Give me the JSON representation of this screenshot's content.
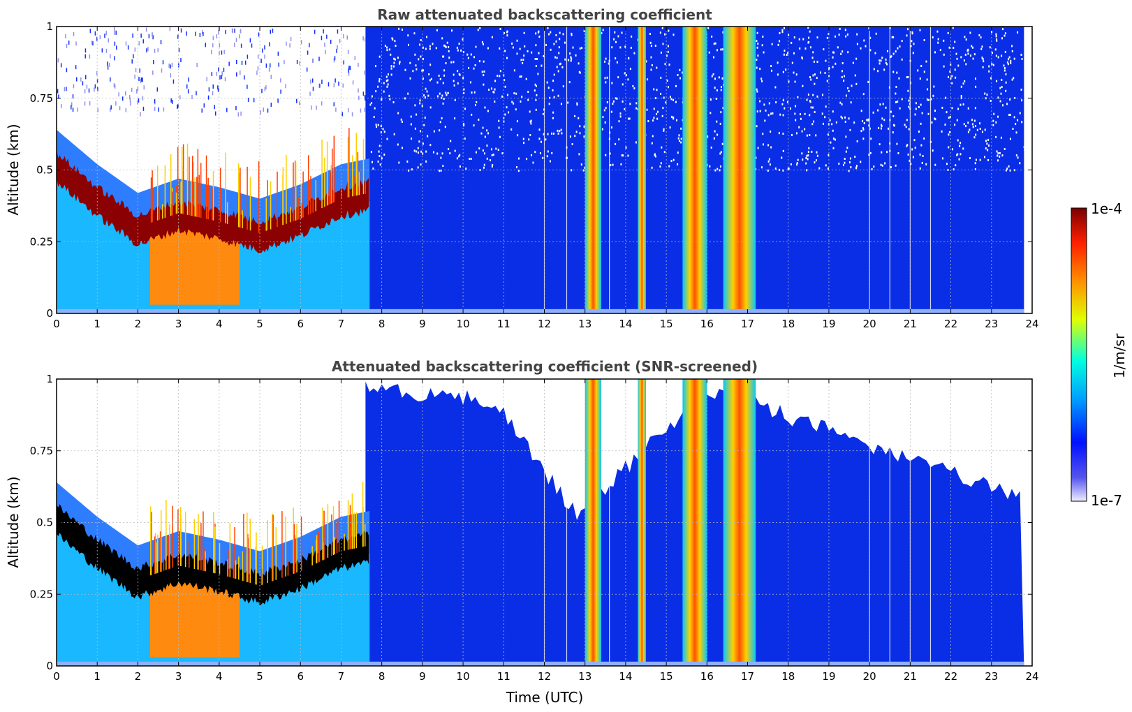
{
  "chart_data": [
    {
      "type": "heatmap",
      "title": "Raw attenuated backscattering coefficient",
      "ylabel": "Altitude (km)",
      "xlabel": "",
      "xlim": [
        0,
        24
      ],
      "ylim": [
        0,
        1
      ],
      "x_ticks": [
        "0",
        "1",
        "2",
        "3",
        "4",
        "5",
        "6",
        "7",
        "8",
        "9",
        "10",
        "11",
        "12",
        "13",
        "14",
        "15",
        "16",
        "17",
        "18",
        "19",
        "20",
        "21",
        "22",
        "23",
        "24"
      ],
      "y_ticks": [
        "0",
        "0.25",
        "0.5",
        "0.75",
        "1"
      ],
      "grid": true,
      "features": [
        {
          "feature": "aerosol-layer-top",
          "time_utc": [
            0,
            1,
            2,
            3,
            4,
            5,
            6,
            7,
            7.7
          ],
          "altitude_km": [
            0.52,
            0.4,
            0.3,
            0.35,
            0.32,
            0.28,
            0.33,
            0.4,
            0.42
          ]
        },
        {
          "feature": "cloud-column",
          "time_utc": [
            13.0,
            13.4
          ]
        },
        {
          "feature": "cloud-column",
          "time_utc": [
            14.3,
            14.5
          ]
        },
        {
          "feature": "cloud-column",
          "time_utc": [
            15.4,
            16.0
          ]
        },
        {
          "feature": "cloud-column",
          "time_utc": [
            16.4,
            17.2
          ]
        }
      ]
    },
    {
      "type": "heatmap",
      "title": "Attenuated backscattering coefficient (SNR-screened)",
      "ylabel": "Altitude (km)",
      "xlabel": "Time (UTC)",
      "xlim": [
        0,
        24
      ],
      "ylim": [
        0,
        1
      ],
      "x_ticks": [
        "0",
        "1",
        "2",
        "3",
        "4",
        "5",
        "6",
        "7",
        "8",
        "9",
        "10",
        "11",
        "12",
        "13",
        "14",
        "15",
        "16",
        "17",
        "18",
        "19",
        "20",
        "21",
        "22",
        "23",
        "24"
      ],
      "y_ticks": [
        "0",
        "0.25",
        "0.5",
        "0.75",
        "1"
      ],
      "grid": true,
      "features": [
        {
          "feature": "aerosol-layer-top",
          "time_utc": [
            0,
            1,
            2,
            3,
            4,
            5,
            6,
            7,
            7.7
          ],
          "altitude_km": [
            0.52,
            0.4,
            0.3,
            0.35,
            0.32,
            0.28,
            0.33,
            0.4,
            0.42
          ]
        },
        {
          "feature": "screened-region-boundary",
          "time_utc": [
            7.8,
            10.8,
            12.8,
            16.0,
            24
          ],
          "altitude_km": [
            1.0,
            0.95,
            0.55,
            1.0,
            0.6
          ]
        }
      ]
    }
  ],
  "colorbar": {
    "label": "1/m/sr",
    "max_label": "1e-4",
    "min_label": "1e-7",
    "scale": "log",
    "colormap": "jet"
  }
}
